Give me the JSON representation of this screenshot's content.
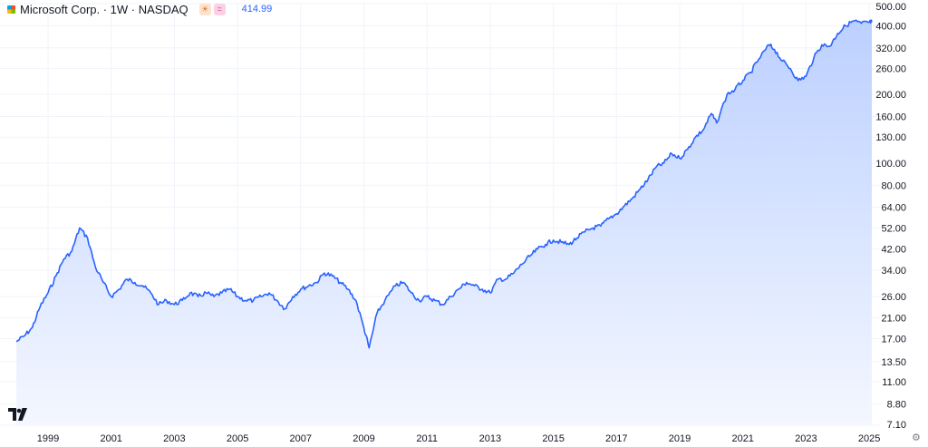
{
  "header": {
    "title": "Microsoft Corp. · 1W · NASDAQ",
    "price": "414.99",
    "price_color": "#2962ff",
    "badge_a_icon": "sun-icon",
    "badge_b_icon": "equals-icon"
  },
  "colors": {
    "line": "#2962ff",
    "fill_top": "#bcd0ff",
    "fill_bottom": "#f4f7ff",
    "grid": "#f0f3fa",
    "axis_text": "#131722"
  },
  "icons": {
    "brand": "tradingview-logo-icon",
    "settings": "gear-icon",
    "company": "microsoft-logo-icon"
  },
  "chart_data": {
    "type": "area",
    "y_scale": "log",
    "ylim": [
      7.1,
      500
    ],
    "xlim": [
      "1998-01",
      "2025-06"
    ],
    "grid": true,
    "y_ticks": [
      "500.00",
      "400.00",
      "320.00",
      "260.00",
      "200.00",
      "160.00",
      "130.00",
      "100.00",
      "80.00",
      "64.00",
      "52.00",
      "42.00",
      "34.00",
      "26.00",
      "21.00",
      "17.00",
      "13.50",
      "11.00",
      "8.80",
      "7.10"
    ],
    "x_ticks": [
      "1999",
      "2001",
      "2003",
      "2005",
      "2007",
      "2009",
      "2011",
      "2013",
      "2015",
      "2017",
      "2019",
      "2021",
      "2023",
      "2025"
    ],
    "series": [
      {
        "x": [
          "1998-01",
          "1998-04",
          "1998-07",
          "1998-10",
          "1999-01",
          "1999-04",
          "1999-07",
          "1999-10",
          "2000-01",
          "2000-04",
          "2000-07",
          "2000-10",
          "2001-01",
          "2001-04",
          "2001-07",
          "2001-10",
          "2002-01",
          "2002-04",
          "2002-07",
          "2002-10",
          "2003-01",
          "2003-04",
          "2003-07",
          "2003-10",
          "2004-01",
          "2004-04",
          "2004-07",
          "2004-10",
          "2005-01",
          "2005-04",
          "2005-07",
          "2005-10",
          "2006-01",
          "2006-04",
          "2006-07",
          "2006-10",
          "2007-01",
          "2007-04",
          "2007-07",
          "2007-10",
          "2008-01",
          "2008-04",
          "2008-07",
          "2008-10",
          "2009-01",
          "2009-03",
          "2009-06",
          "2009-09",
          "2010-01",
          "2010-04",
          "2010-07",
          "2010-10",
          "2011-01",
          "2011-04",
          "2011-07",
          "2011-10",
          "2012-01",
          "2012-04",
          "2012-07",
          "2012-10",
          "2013-01",
          "2013-04",
          "2013-07",
          "2013-10",
          "2014-01",
          "2014-04",
          "2014-07",
          "2014-10",
          "2015-01",
          "2015-04",
          "2015-07",
          "2015-10",
          "2016-01",
          "2016-04",
          "2016-07",
          "2016-10",
          "2017-01",
          "2017-04",
          "2017-07",
          "2017-10",
          "2018-01",
          "2018-04",
          "2018-07",
          "2018-10",
          "2019-01",
          "2019-04",
          "2019-07",
          "2019-10",
          "2020-01",
          "2020-03",
          "2020-07",
          "2020-10",
          "2021-01",
          "2021-04",
          "2021-07",
          "2021-11",
          "2022-01",
          "2022-04",
          "2022-07",
          "2022-10",
          "2023-01",
          "2023-04",
          "2023-07",
          "2023-10",
          "2024-01",
          "2024-04",
          "2024-07",
          "2024-10",
          "2025-01",
          "2025-02"
        ],
        "y": [
          16.5,
          17.5,
          19,
          23.5,
          27,
          32,
          38,
          41,
          52,
          47,
          35,
          30,
          26,
          28,
          31,
          30,
          29,
          27,
          24,
          25,
          24,
          25,
          27,
          26,
          27,
          26,
          27,
          28,
          26,
          25,
          25,
          26,
          27,
          25,
          23,
          26,
          28,
          29,
          30,
          33,
          32,
          30,
          28,
          25,
          19,
          15.5,
          22,
          25,
          29,
          30,
          27,
          25,
          26,
          25,
          24,
          26,
          28,
          30,
          29,
          28,
          27,
          31,
          31,
          33,
          36,
          39,
          42,
          44,
          46,
          45,
          44,
          47,
          50,
          52,
          53,
          57,
          60,
          65,
          70,
          77,
          85,
          96,
          100,
          110,
          105,
          115,
          130,
          140,
          165,
          150,
          200,
          210,
          230,
          250,
          285,
          330,
          315,
          280,
          260,
          230,
          240,
          290,
          330,
          325,
          370,
          400,
          420,
          410,
          415,
          415
        ]
      }
    ]
  }
}
